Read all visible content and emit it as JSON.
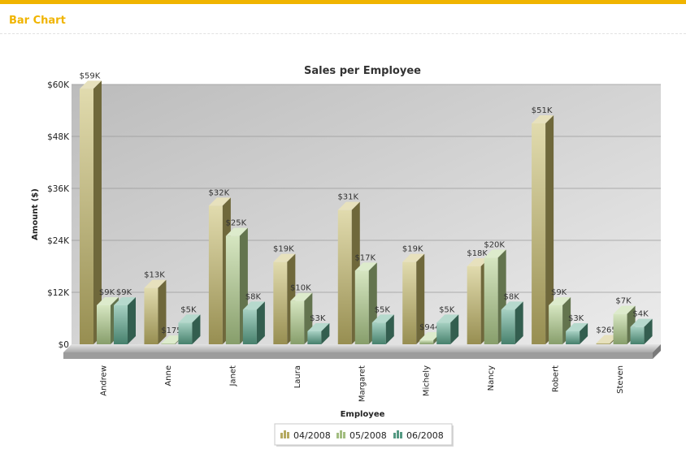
{
  "page": {
    "title": "Bar Chart"
  },
  "colors": {
    "accent": "#f0b400",
    "series": [
      "#c9bd6c",
      "#b4d28e",
      "#5daa90"
    ]
  },
  "chart_data": {
    "type": "bar",
    "title": "Sales per Employee",
    "xlabel": "Employee",
    "ylabel": "Amount ($)",
    "ylim": [
      0,
      60000
    ],
    "yticks": [
      "$0",
      "$12K",
      "$24K",
      "$36K",
      "$48K",
      "$60K"
    ],
    "grid": true,
    "legend_position": "bottom",
    "categories": [
      "Andrew",
      "Anne",
      "Janet",
      "Laura",
      "Margaret",
      "Michely",
      "Nancy",
      "Robert",
      "Steven"
    ],
    "series": [
      {
        "name": "04/2008",
        "values": [
          59000,
          13000,
          32000,
          19000,
          31000,
          19000,
          18000,
          51000,
          265
        ],
        "labels": [
          "$59K",
          "$13K",
          "$32K",
          "$19K",
          "$31K",
          "$19K",
          "$18K",
          "$51K",
          "$265"
        ]
      },
      {
        "name": "05/2008",
        "values": [
          9000,
          175,
          25000,
          10000,
          17000,
          944,
          20000,
          9000,
          7000
        ],
        "labels": [
          "$9K",
          "$175",
          "$25K",
          "$10K",
          "$17K",
          "$944",
          "$20K",
          "$9K",
          "$7K"
        ]
      },
      {
        "name": "06/2008",
        "values": [
          9000,
          5000,
          8000,
          3000,
          5000,
          5000,
          8000,
          3000,
          4000
        ],
        "labels": [
          "$9K",
          "$5K",
          "$8K",
          "$3K",
          "$5K",
          "$5K",
          "$8K",
          "$3K",
          "$4K"
        ]
      }
    ]
  }
}
